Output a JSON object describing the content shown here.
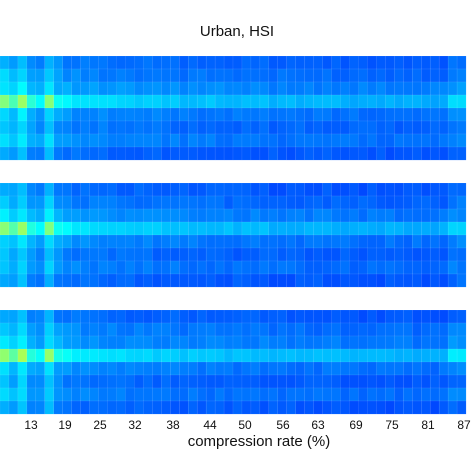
{
  "chart_data": {
    "type": "heatmap",
    "title": "Urban, HSI",
    "xlabel": "compression rate (%)",
    "ylabel": "",
    "x_tick_labels": [
      "13",
      "19",
      "25",
      "32",
      "38",
      "44",
      "50",
      "56",
      "63",
      "69",
      "75",
      "81",
      "87"
    ],
    "colormap": "jet",
    "value_range": [
      0,
      1
    ],
    "columns": 52,
    "rows_per_panel": 8,
    "panels": [
      {
        "row_levels": [
          0.31,
          0.33,
          0.36,
          0.42,
          0.34,
          0.32,
          0.34,
          0.3
        ],
        "column_profile": [
          1.0,
          0.92,
          1.04,
          0.86,
          0.82,
          1.0,
          0.84,
          0.8,
          0.78,
          0.77,
          0.76,
          0.76,
          0.75,
          0.75,
          0.74,
          0.74,
          0.74,
          0.73,
          0.73,
          0.73,
          0.72,
          0.72,
          0.72,
          0.72,
          0.72,
          0.71,
          0.71,
          0.71,
          0.71,
          0.71,
          0.7,
          0.7,
          0.7,
          0.7,
          0.7,
          0.7,
          0.7,
          0.7,
          0.69,
          0.69,
          0.69,
          0.69,
          0.69,
          0.69,
          0.69,
          0.69,
          0.69,
          0.69,
          0.69,
          0.69,
          0.69,
          0.69
        ]
      },
      {
        "row_levels": [
          0.3,
          0.32,
          0.35,
          0.42,
          0.34,
          0.31,
          0.33,
          0.3
        ],
        "column_profile": [
          1.0,
          0.92,
          1.04,
          0.86,
          0.82,
          1.0,
          0.84,
          0.8,
          0.78,
          0.77,
          0.76,
          0.76,
          0.75,
          0.75,
          0.74,
          0.74,
          0.74,
          0.73,
          0.73,
          0.73,
          0.72,
          0.72,
          0.72,
          0.72,
          0.72,
          0.71,
          0.71,
          0.71,
          0.71,
          0.71,
          0.7,
          0.7,
          0.7,
          0.7,
          0.7,
          0.7,
          0.7,
          0.7,
          0.69,
          0.69,
          0.69,
          0.69,
          0.69,
          0.69,
          0.69,
          0.69,
          0.69,
          0.69,
          0.69,
          0.69,
          0.69,
          0.69
        ]
      },
      {
        "row_levels": [
          0.3,
          0.33,
          0.35,
          0.43,
          0.34,
          0.31,
          0.33,
          0.3
        ],
        "column_profile": [
          1.0,
          0.92,
          1.04,
          0.86,
          0.82,
          1.0,
          0.84,
          0.8,
          0.78,
          0.77,
          0.76,
          0.76,
          0.75,
          0.75,
          0.74,
          0.74,
          0.74,
          0.73,
          0.73,
          0.73,
          0.72,
          0.72,
          0.72,
          0.72,
          0.72,
          0.71,
          0.71,
          0.71,
          0.71,
          0.71,
          0.7,
          0.7,
          0.7,
          0.7,
          0.7,
          0.7,
          0.7,
          0.7,
          0.69,
          0.69,
          0.69,
          0.69,
          0.69,
          0.69,
          0.69,
          0.69,
          0.69,
          0.69,
          0.69,
          0.69,
          0.69,
          0.69
        ]
      }
    ],
    "right_edge_boost": 1.1,
    "grid": false,
    "legend": "none"
  }
}
